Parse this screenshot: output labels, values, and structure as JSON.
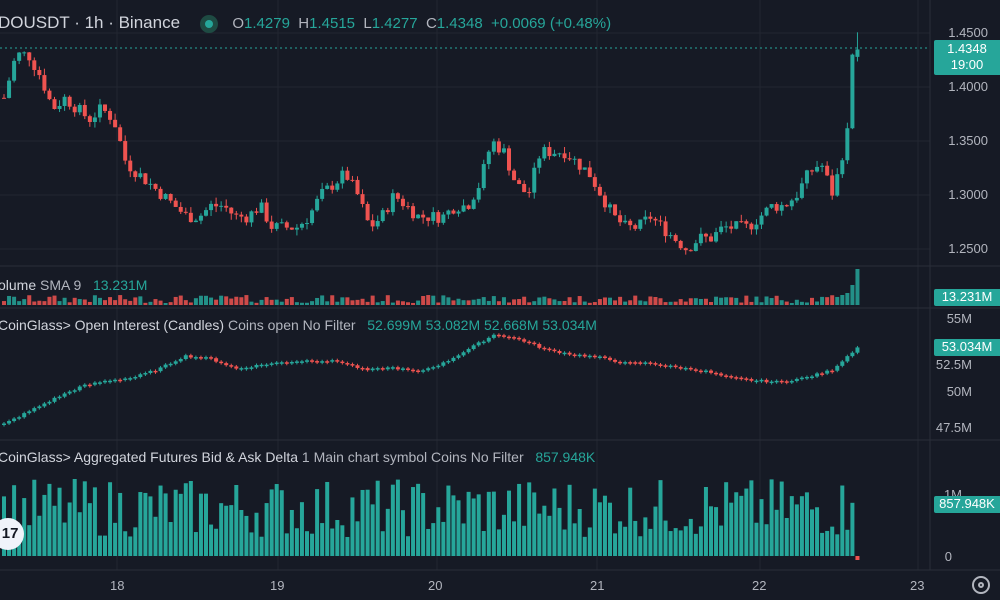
{
  "header": {
    "symbol": "DOUSDT · 1h · Binance",
    "o_label": "O",
    "o_value": "1.4279",
    "h_label": "H",
    "h_value": "1.4515",
    "l_label": "L",
    "l_value": "1.4277",
    "c_label": "C",
    "c_value": "1.4348",
    "change": "+0.0069 (+0.48%)"
  },
  "price_axis": [
    "1.4500",
    "1.4000",
    "1.3500",
    "1.3000",
    "1.2500"
  ],
  "price_tag": {
    "price": "1.4348",
    "countdown": "19:00"
  },
  "volume": {
    "title": "olume",
    "sma": "SMA 9",
    "value": "13.231M",
    "tag": "13.231M"
  },
  "oi": {
    "title": "CoinGlass> Open Interest (Candles)",
    "params": "Coins open No Filter",
    "values": [
      "52.699M",
      "53.082M",
      "52.668M",
      "53.034M"
    ],
    "axis": [
      "55M",
      "52.5M",
      "50M",
      "47.5M"
    ],
    "tag": "53.034M"
  },
  "delta": {
    "title": "CoinGlass> Aggregated Futures Bid & Ask Delta",
    "params": "1 Main chart symbol Coins No Filter",
    "value": "857.948K",
    "axis": [
      "1M",
      "0"
    ],
    "tag": "857.948K"
  },
  "time_axis": [
    "18",
    "19",
    "20",
    "21",
    "22",
    "23"
  ],
  "colors": {
    "up": "#26a69a",
    "down": "#ef5350",
    "bg": "#161a25",
    "grid": "#222631"
  },
  "chart_data": {
    "type": "candlestick",
    "price_close_path": [
      1.39,
      1.43,
      1.43,
      1.41,
      1.38,
      1.39,
      1.38,
      1.37,
      1.38,
      1.37,
      1.33,
      1.32,
      1.31,
      1.3,
      1.29,
      1.28,
      1.28,
      1.29,
      1.29,
      1.28,
      1.28,
      1.29,
      1.27,
      1.27,
      1.27,
      1.28,
      1.3,
      1.31,
      1.32,
      1.3,
      1.27,
      1.28,
      1.3,
      1.29,
      1.28,
      1.28,
      1.28,
      1.29,
      1.29,
      1.31,
      1.35,
      1.34,
      1.31,
      1.3,
      1.34,
      1.34,
      1.34,
      1.33,
      1.32,
      1.3,
      1.28,
      1.27,
      1.27,
      1.28,
      1.27,
      1.26,
      1.25,
      1.26,
      1.26,
      1.27,
      1.27,
      1.27,
      1.28,
      1.29,
      1.29,
      1.3,
      1.32,
      1.33,
      1.3,
      1.35,
      1.43
    ]
  }
}
